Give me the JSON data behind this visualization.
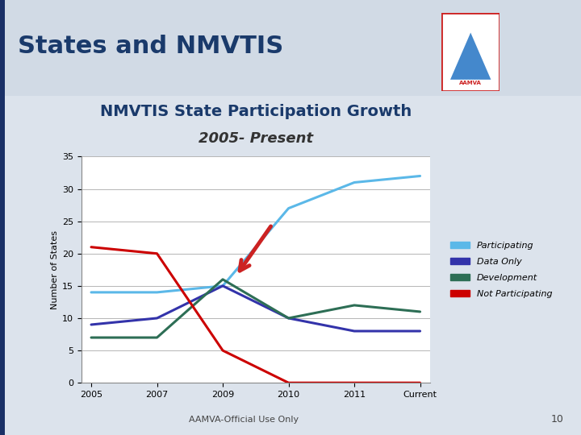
{
  "title_line1": "NMVTIS State Participation Growth",
  "title_line2": "2005- Present",
  "slide_title": "States and NMVTIS",
  "footer": "AAMVA-Official Use Only",
  "page_number": "10",
  "ylabel": "Number of States",
  "xtick_labels": [
    "2005",
    "2007",
    "2009",
    "2010",
    "2011",
    "Current"
  ],
  "yticks": [
    0,
    5,
    10,
    15,
    20,
    25,
    30,
    35
  ],
  "ylim": [
    0,
    35
  ],
  "series": {
    "Participating": {
      "color": "#5bb8e8",
      "values": [
        14,
        14,
        15,
        27,
        31,
        32
      ]
    },
    "Data Only": {
      "color": "#3333aa",
      "values": [
        9,
        10,
        15,
        10,
        8,
        8
      ]
    },
    "Development": {
      "color": "#2d6e55",
      "values": [
        7,
        7,
        16,
        10,
        12,
        11
      ]
    },
    "Not Participating": {
      "color": "#cc0000",
      "values": [
        21,
        20,
        5,
        0,
        0,
        0
      ]
    }
  },
  "slide_bg": "#dce3ec",
  "chart_bg": "#ffffff",
  "header_bg": "#c8d0dc",
  "slide_title_color": "#1a3a6b",
  "title_fontsize": 14,
  "subtitle_fontsize": 13,
  "axis_label_fontsize": 8,
  "tick_fontsize": 8,
  "legend_fontsize": 8,
  "slide_title_fontsize": 22,
  "footer_fontsize": 8,
  "page_num_fontsize": 9
}
